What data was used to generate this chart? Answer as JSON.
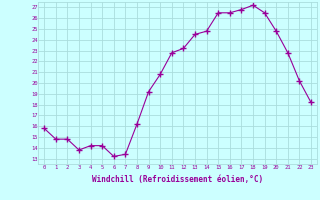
{
  "x": [
    0,
    1,
    2,
    3,
    4,
    5,
    6,
    7,
    8,
    9,
    10,
    11,
    12,
    13,
    14,
    15,
    16,
    17,
    18,
    19,
    20,
    21,
    22,
    23
  ],
  "y": [
    15.8,
    14.8,
    14.8,
    13.8,
    14.2,
    14.2,
    13.2,
    13.4,
    16.2,
    19.2,
    20.8,
    22.8,
    23.2,
    24.5,
    24.8,
    26.5,
    26.5,
    26.8,
    27.2,
    26.5,
    24.8,
    22.8,
    20.2,
    18.2
  ],
  "line_color": "#990099",
  "marker": "+",
  "bg_color": "#ccffff",
  "grid_color": "#aadddd",
  "xlabel": "Windchill (Refroidissement éolien,°C)",
  "xlabel_color": "#990099",
  "ytick_labels": [
    "13",
    "14",
    "15",
    "16",
    "17",
    "18",
    "19",
    "20",
    "21",
    "22",
    "23",
    "24",
    "25",
    "26",
    "27"
  ],
  "xtick_labels": [
    "0",
    "1",
    "2",
    "3",
    "4",
    "5",
    "6",
    "7",
    "8",
    "9",
    "10",
    "11",
    "12",
    "13",
    "14",
    "15",
    "16",
    "17",
    "18",
    "19",
    "20",
    "21",
    "22",
    "23"
  ],
  "ylim": [
    12.5,
    27.5
  ],
  "xlim": [
    -0.5,
    23.5
  ],
  "yticks": [
    13,
    14,
    15,
    16,
    17,
    18,
    19,
    20,
    21,
    22,
    23,
    24,
    25,
    26,
    27
  ]
}
